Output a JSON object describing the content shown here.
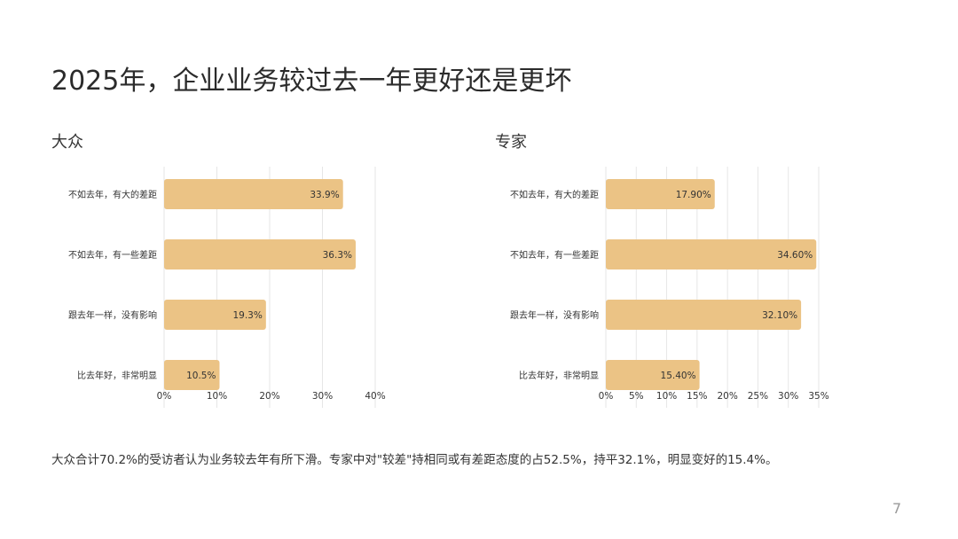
{
  "title": "2025年，企业业务较过去一年更好还是更坏",
  "summary": "大众合计70.2%的受访者认为业务较去年有所下滑。专家中对\"较差\"持相同或有差距态度的占52.5%，持平32.1%，明显变好的15.4%。",
  "page_number": "7",
  "colors": {
    "bar": "#EBC385",
    "grid": "#e6e6e6"
  },
  "chart_data": [
    {
      "type": "bar",
      "orientation": "horizontal",
      "title": "大众",
      "categories": [
        "不如去年，有大的差距",
        "不如去年，有一些差距",
        "跟去年一样，没有影响",
        "比去年好，非常明显"
      ],
      "values": [
        33.9,
        36.3,
        19.3,
        10.5
      ],
      "value_labels": [
        "33.9%",
        "36.3%",
        "19.3%",
        "10.5%"
      ],
      "xlim": [
        0,
        40
      ],
      "ticks": [
        "0%",
        "10%",
        "20%",
        "30%",
        "40%"
      ],
      "grid": true
    },
    {
      "type": "bar",
      "orientation": "horizontal",
      "title": "专家",
      "categories": [
        "不如去年，有大的差距",
        "不如去年，有一些差距",
        "跟去年一样，没有影响",
        "比去年好，非常明显"
      ],
      "values": [
        17.9,
        34.6,
        32.1,
        15.4
      ],
      "value_labels": [
        "17.90%",
        "34.60%",
        "32.10%",
        "15.40%"
      ],
      "xlim": [
        0,
        35
      ],
      "ticks": [
        "0%",
        "5%",
        "10%",
        "15%",
        "20%",
        "25%",
        "30%",
        "35%"
      ],
      "grid": true
    }
  ]
}
